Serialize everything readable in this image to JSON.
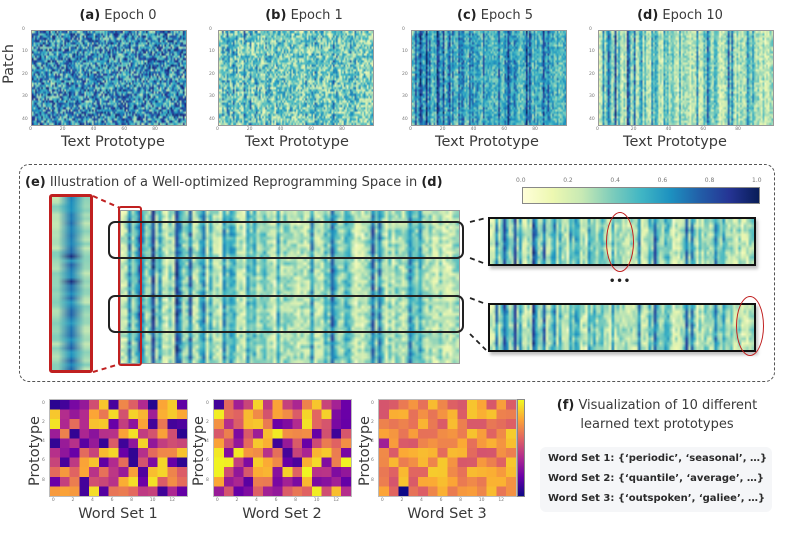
{
  "chart_data": [
    {
      "id": "epoch0",
      "type": "heatmap",
      "title_prefix": "(a)",
      "title": "Epoch 0",
      "xlabel": "Text Prototype",
      "ylabel": "Patch",
      "xticks": [
        "0",
        "20",
        "40",
        "60",
        "80"
      ],
      "yticks": [
        "0",
        "10",
        "20",
        "30",
        "40"
      ],
      "xlim": [
        0,
        100
      ],
      "ylim": [
        0,
        42
      ],
      "colormap": "YlGnBu",
      "pattern": "random noise, mid-to-dark blue dominant",
      "mean_value": 0.6,
      "column_structure": 0.0
    },
    {
      "id": "epoch1",
      "type": "heatmap",
      "title_prefix": "(b)",
      "title": "Epoch 1",
      "xlabel": "Text Prototype",
      "ylabel": "",
      "xticks": [
        "0",
        "20",
        "40",
        "60",
        "80"
      ],
      "yticks": [
        "0",
        "10",
        "20",
        "30",
        "40"
      ],
      "xlim": [
        0,
        100
      ],
      "ylim": [
        0,
        42
      ],
      "colormap": "YlGnBu",
      "pattern": "noisy with emerging vertical stripes",
      "mean_value": 0.38,
      "column_structure": 0.35
    },
    {
      "id": "epoch5",
      "type": "heatmap",
      "title_prefix": "(c)",
      "title": "Epoch 5",
      "xlabel": "Text Prototype",
      "ylabel": "",
      "xticks": [
        "0",
        "20",
        "40",
        "60",
        "80"
      ],
      "yticks": [
        "0",
        "10",
        "20",
        "30",
        "40"
      ],
      "xlim": [
        0,
        100
      ],
      "ylim": [
        0,
        42
      ],
      "colormap": "YlGnBu",
      "pattern": "vertical stripes, teal dominant",
      "mean_value": 0.5,
      "column_structure": 0.7
    },
    {
      "id": "epoch10",
      "type": "heatmap",
      "title_prefix": "(d)",
      "title": "Epoch 10",
      "xlabel": "Text Prototype",
      "ylabel": "",
      "xticks": [
        "0",
        "20",
        "40",
        "60",
        "80"
      ],
      "yticks": [
        "0",
        "10",
        "20",
        "30",
        "40"
      ],
      "xlim": [
        0,
        100
      ],
      "ylim": [
        0,
        42
      ],
      "colormap": "YlGnBu",
      "pattern": "clear vertical stripes, light green-yellow dominant",
      "mean_value": 0.3,
      "column_structure": 0.85
    },
    {
      "id": "wordset1",
      "type": "heatmap",
      "xlabel": "Word Set 1",
      "ylabel": "Prototype",
      "xticks": [
        "0",
        "2",
        "4",
        "6",
        "8",
        "10",
        "12"
      ],
      "yticks": [
        "0",
        "2",
        "4",
        "6",
        "8"
      ],
      "rows": 10,
      "cols": 14,
      "colormap": "plasma",
      "mean_value": 0.5
    },
    {
      "id": "wordset2",
      "type": "heatmap",
      "xlabel": "Word Set 2",
      "ylabel": "Prototype",
      "xticks": [
        "0",
        "2",
        "4",
        "6",
        "8",
        "10",
        "12"
      ],
      "yticks": [
        "0",
        "2",
        "4",
        "6",
        "8"
      ],
      "rows": 10,
      "cols": 14,
      "colormap": "plasma",
      "mean_value": 0.55
    },
    {
      "id": "wordset3",
      "type": "heatmap",
      "xlabel": "Word Set 3",
      "ylabel": "Prototype",
      "xticks": [
        "0",
        "2",
        "4",
        "6",
        "8",
        "10",
        "12"
      ],
      "yticks": [
        "0",
        "2",
        "4",
        "6",
        "8"
      ],
      "rows": 10,
      "cols": 14,
      "colormap": "plasma",
      "mean_value": 0.72,
      "colorbar": true
    }
  ],
  "section_e": {
    "prefix": "(e)",
    "title": "Illustration of a Well-optimized Reprogramming Space in",
    "suffix": "(d)",
    "colorbar_ticks": [
      "0.0",
      "0.2",
      "0.4",
      "0.6",
      "0.8",
      "1.0"
    ],
    "colorbar_range": [
      0.0,
      1.0
    ],
    "ellipsis": "•••"
  },
  "section_f": {
    "prefix": "(f)",
    "title_line1": "Visualization of 10 different",
    "title_line2": "learned text prototypes",
    "word_sets": [
      {
        "label": "Word Set 1:",
        "words": "{‘periodic’, ‘seasonal’, …}"
      },
      {
        "label": "Word Set 2:",
        "words": "{‘quantile’, ‘average’, …}"
      },
      {
        "label": "Word Set 3:",
        "words": "{‘outspoken’, ‘galiee’, …}"
      }
    ]
  },
  "colors": {
    "highlight_red": "#c02020",
    "frame_black": "#222222"
  }
}
